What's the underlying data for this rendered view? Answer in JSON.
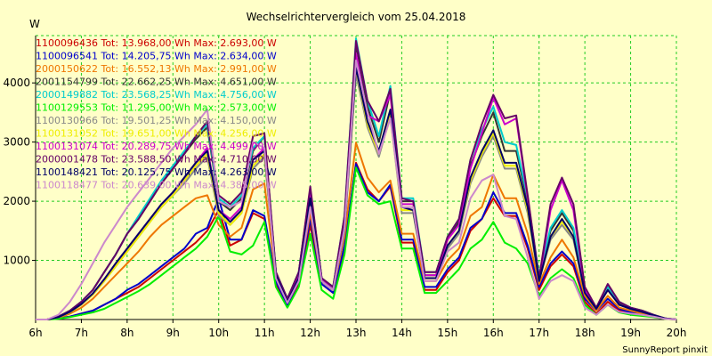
{
  "chart_data": {
    "type": "line",
    "title": "Wechselrichtervergleich vom 25.04.2018",
    "ylabel": "W",
    "footer": "SunnyReport pinxit",
    "xlim": [
      6,
      20
    ],
    "ylim": [
      0,
      4800
    ],
    "grid": true,
    "legend_position": "top-left",
    "x_ticks": [
      "6h",
      "7h",
      "8h",
      "9h",
      "10h",
      "11h",
      "12h",
      "13h",
      "14h",
      "15h",
      "16h",
      "17h",
      "18h",
      "19h",
      "20h"
    ],
    "y_ticks": [
      1000,
      2000,
      3000,
      4000
    ],
    "y_tick_labels": [
      "1000",
      "2000",
      "3000",
      "4000"
    ],
    "x": [
      6,
      6.25,
      6.5,
      6.75,
      7,
      7.25,
      7.5,
      7.75,
      8,
      8.25,
      8.5,
      8.75,
      9,
      9.25,
      9.5,
      9.75,
      10,
      10.25,
      10.5,
      10.75,
      11,
      11.25,
      11.5,
      11.75,
      12,
      12.25,
      12.5,
      12.75,
      13,
      13.25,
      13.5,
      13.75,
      14,
      14.25,
      14.5,
      14.75,
      15,
      15.25,
      15.5,
      15.75,
      16,
      16.25,
      16.5,
      16.75,
      17,
      17.25,
      17.5,
      17.75,
      18,
      18.25,
      18.5,
      18.75,
      19,
      19.25,
      19.5,
      19.75,
      20
    ],
    "series": [
      {
        "name": "1100096436 Tot: 13.968,00 Wh Max: 2.693,00 W",
        "color": "#cc0000",
        "values": [
          0,
          0,
          20,
          50,
          100,
          150,
          250,
          350,
          450,
          550,
          700,
          850,
          1000,
          1150,
          1300,
          1500,
          1850,
          1250,
          1350,
          1800,
          1700,
          600,
          250,
          600,
          1600,
          600,
          450,
          1200,
          2650,
          2200,
          2000,
          2250,
          1300,
          1300,
          500,
          500,
          800,
          1000,
          1500,
          1700,
          2050,
          1750,
          1750,
          1200,
          500,
          900,
          1100,
          900,
          300,
          100,
          300,
          150,
          100,
          80,
          50,
          10,
          0
        ]
      },
      {
        "name": "1100096541 Tot: 14.205,75 Wh Max: 2.634,00 W",
        "color": "#0000cc",
        "values": [
          0,
          0,
          20,
          50,
          100,
          150,
          250,
          350,
          500,
          600,
          750,
          900,
          1050,
          1200,
          1450,
          1550,
          2050,
          1350,
          1350,
          1850,
          1750,
          650,
          250,
          650,
          1700,
          600,
          450,
          1250,
          2630,
          2150,
          2000,
          2280,
          1350,
          1350,
          550,
          550,
          850,
          1050,
          1550,
          1700,
          2150,
          1800,
          1800,
          1250,
          550,
          950,
          1150,
          950,
          350,
          150,
          350,
          180,
          120,
          90,
          60,
          15,
          0
        ]
      },
      {
        "name": "2000150622 Tot: 16.552,13 Wh Max: 2.991,00 W",
        "color": "#ee7700",
        "values": [
          0,
          0,
          30,
          100,
          200,
          350,
          550,
          750,
          950,
          1150,
          1400,
          1600,
          1750,
          1900,
          2050,
          2100,
          1600,
          1400,
          1550,
          2200,
          2300,
          700,
          300,
          700,
          1800,
          650,
          500,
          1400,
          2990,
          2400,
          2150,
          2350,
          1450,
          1450,
          650,
          650,
          1000,
          1200,
          1750,
          1900,
          2450,
          2050,
          2050,
          1450,
          600,
          1050,
          1350,
          1050,
          400,
          150,
          400,
          200,
          150,
          100,
          60,
          15,
          0
        ]
      },
      {
        "name": "2001154799 Tot: 22.662,25 Wh Max: 4.651,00 W",
        "color": "#333333",
        "values": [
          0,
          0,
          50,
          150,
          300,
          500,
          800,
          1100,
          1450,
          1700,
          2000,
          2300,
          2550,
          2800,
          3050,
          3250,
          2000,
          1850,
          2050,
          2850,
          3100,
          800,
          350,
          800,
          2200,
          700,
          550,
          1700,
          4650,
          3600,
          3000,
          3850,
          2000,
          2000,
          750,
          750,
          1350,
          1650,
          2600,
          3100,
          3500,
          2850,
          2850,
          2000,
          700,
          1500,
          1800,
          1500,
          500,
          200,
          550,
          280,
          200,
          150,
          80,
          20,
          0
        ]
      },
      {
        "name": "2000149882 Tot: 23.568,25 Wh Max: 4.756,00 W",
        "color": "#00cccc",
        "values": [
          0,
          0,
          50,
          150,
          300,
          500,
          800,
          1100,
          1450,
          1750,
          2050,
          2350,
          2600,
          2850,
          3100,
          3300,
          2050,
          1900,
          2100,
          2900,
          3100,
          800,
          350,
          800,
          2200,
          700,
          550,
          1750,
          4750,
          3700,
          3100,
          3950,
          2050,
          2050,
          800,
          800,
          1400,
          1700,
          2700,
          3200,
          3600,
          3000,
          2950,
          2050,
          750,
          1550,
          1850,
          1550,
          500,
          200,
          550,
          300,
          200,
          150,
          80,
          20,
          0
        ]
      },
      {
        "name": "1100129553 Tot: 11.295,00 Wh Max: 2.573,00 W",
        "color": "#00ee00",
        "values": [
          0,
          0,
          10,
          40,
          80,
          120,
          180,
          280,
          380,
          480,
          600,
          750,
          900,
          1050,
          1200,
          1400,
          1750,
          1150,
          1100,
          1250,
          1650,
          550,
          200,
          550,
          1450,
          500,
          350,
          1100,
          2570,
          2100,
          1950,
          2000,
          1200,
          1200,
          450,
          450,
          650,
          850,
          1200,
          1350,
          1650,
          1300,
          1200,
          950,
          400,
          700,
          850,
          700,
          250,
          80,
          250,
          120,
          80,
          60,
          40,
          10,
          0
        ]
      },
      {
        "name": "1100130966 Tot: 19.501,25 Wh Max: 4.150,00 W",
        "color": "#888888",
        "values": [
          0,
          0,
          40,
          120,
          250,
          420,
          650,
          900,
          1150,
          1400,
          1650,
          1900,
          2100,
          2300,
          2550,
          2750,
          1750,
          1600,
          1800,
          2550,
          2750,
          750,
          300,
          700,
          2000,
          650,
          500,
          1500,
          4150,
          3250,
          2750,
          3450,
          1800,
          1800,
          700,
          700,
          1200,
          1450,
          2300,
          2750,
          3100,
          2550,
          2550,
          1800,
          650,
          1350,
          1600,
          1350,
          450,
          180,
          500,
          250,
          180,
          130,
          70,
          20,
          0
        ]
      },
      {
        "name": "1100131052 Tot: 19.651,00 Wh Max: 4.256,00 W",
        "color": "#eeee00",
        "values": [
          0,
          0,
          40,
          120,
          250,
          420,
          650,
          900,
          1150,
          1400,
          1650,
          1900,
          2100,
          2350,
          2600,
          2800,
          1800,
          1600,
          1800,
          2600,
          2800,
          750,
          300,
          700,
          2050,
          650,
          500,
          1550,
          4250,
          3300,
          2800,
          3500,
          1850,
          1850,
          700,
          700,
          1250,
          1500,
          2350,
          2800,
          3150,
          2600,
          2600,
          1850,
          650,
          1400,
          1650,
          1400,
          450,
          180,
          500,
          250,
          180,
          130,
          70,
          20,
          0
        ]
      },
      {
        "name": "1100131074 Tot: 20.289,75 Wh Max: 4.499,00 W",
        "color": "#cc00cc",
        "values": [
          0,
          0,
          40,
          130,
          260,
          440,
          680,
          950,
          1200,
          1450,
          1700,
          1950,
          2150,
          2400,
          2650,
          2900,
          1850,
          1700,
          1900,
          2700,
          2900,
          800,
          300,
          750,
          2100,
          700,
          500,
          1600,
          4500,
          3450,
          3350,
          3800,
          1950,
          1950,
          750,
          750,
          1350,
          1600,
          2550,
          3150,
          3750,
          3300,
          3400,
          2050,
          650,
          1850,
          2350,
          1850,
          500,
          180,
          500,
          250,
          180,
          130,
          70,
          20,
          0
        ]
      },
      {
        "name": "2000001478 Tot: 23.588,50 Wh Max: 4.710,00 W",
        "color": "#660066",
        "values": [
          0,
          0,
          50,
          150,
          300,
          500,
          800,
          1100,
          1450,
          1700,
          2000,
          2300,
          2550,
          2800,
          3100,
          3350,
          2100,
          1950,
          2150,
          3100,
          3150,
          800,
          350,
          800,
          2250,
          700,
          550,
          1750,
          4710,
          3700,
          3350,
          3900,
          2050,
          2000,
          800,
          800,
          1400,
          1700,
          2700,
          3300,
          3800,
          3400,
          3450,
          2100,
          700,
          1950,
          2400,
          1950,
          550,
          200,
          600,
          300,
          200,
          150,
          80,
          20,
          0
        ]
      },
      {
        "name": "1100148421 Tot: 20.125,75 Wh Max: 4.263,00 W",
        "color": "#000066",
        "values": [
          0,
          0,
          40,
          130,
          260,
          440,
          680,
          950,
          1200,
          1450,
          1700,
          1950,
          2150,
          2400,
          2650,
          2850,
          1850,
          1650,
          1850,
          2700,
          2850,
          750,
          300,
          700,
          2050,
          650,
          500,
          1550,
          4260,
          3350,
          2850,
          3550,
          1900,
          1850,
          700,
          700,
          1250,
          1500,
          2400,
          2850,
          3200,
          2650,
          2650,
          1900,
          650,
          1400,
          1700,
          1400,
          450,
          180,
          500,
          250,
          180,
          130,
          70,
          20,
          0
        ]
      },
      {
        "name": "1100118477 Tot: 20.639,00 Wh Max: 4.385,00 W",
        "color": "#cc88cc",
        "values": [
          0,
          0,
          80,
          300,
          600,
          950,
          1300,
          1600,
          1900,
          2150,
          2400,
          2650,
          2900,
          3100,
          3300,
          3550,
          2000,
          1900,
          2000,
          3000,
          2900,
          700,
          280,
          650,
          1900,
          650,
          500,
          1550,
          4380,
          3500,
          2800,
          3400,
          1900,
          1900,
          650,
          650,
          1150,
          1300,
          2050,
          2350,
          2450,
          1750,
          1700,
          1050,
          350,
          650,
          750,
          650,
          200,
          80,
          250,
          130,
          100,
          80,
          50,
          10,
          0
        ]
      }
    ]
  }
}
